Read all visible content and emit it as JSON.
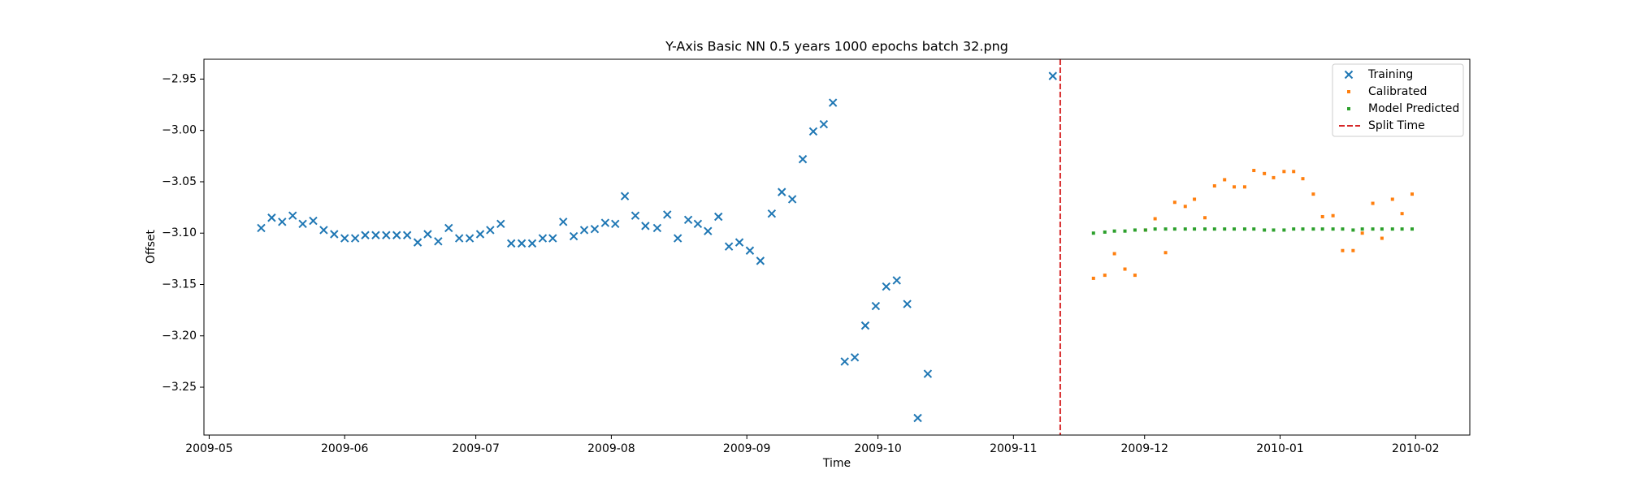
{
  "chart_data": {
    "type": "scatter",
    "title": "Y-Axis Basic NN 0.5 years 1000 epochs batch 32.png",
    "xlabel": "Time",
    "ylabel": "Offset",
    "xlim": [
      -1.2,
      288.4
    ],
    "ylim": [
      -3.2966,
      -2.9307
    ],
    "xticks": [
      {
        "value": 0,
        "label": "2009-05"
      },
      {
        "value": 31,
        "label": "2009-06"
      },
      {
        "value": 61,
        "label": "2009-07"
      },
      {
        "value": 92,
        "label": "2009-08"
      },
      {
        "value": 123,
        "label": "2009-09"
      },
      {
        "value": 153,
        "label": "2009-10"
      },
      {
        "value": 184,
        "label": "2009-11"
      },
      {
        "value": 214,
        "label": "2009-12"
      },
      {
        "value": 245,
        "label": "2010-01"
      },
      {
        "value": 276,
        "label": "2010-02"
      }
    ],
    "yticks": [
      {
        "value": -2.95,
        "label": "−2.95"
      },
      {
        "value": -3.0,
        "label": "−3.00"
      },
      {
        "value": -3.05,
        "label": "−3.05"
      },
      {
        "value": -3.1,
        "label": "−3.10"
      },
      {
        "value": -3.15,
        "label": "−3.15"
      },
      {
        "value": -3.2,
        "label": "−3.20"
      },
      {
        "value": -3.25,
        "label": "−3.25"
      }
    ],
    "legend": "upper right",
    "series": [
      {
        "name": "Training",
        "color": "#1f77b4",
        "marker": "x",
        "x": [
          11.9,
          14.3,
          16.7,
          19.1,
          21.4,
          23.8,
          26.2,
          28.6,
          31.0,
          33.4,
          35.7,
          38.1,
          40.5,
          42.9,
          45.3,
          47.7,
          50.0,
          52.4,
          54.8,
          57.2,
          59.6,
          62.0,
          64.3,
          66.7,
          69.1,
          71.5,
          73.9,
          76.3,
          78.6,
          81.0,
          83.4,
          85.8,
          88.2,
          90.6,
          92.9,
          95.1,
          97.5,
          99.8,
          102.5,
          104.8,
          107.2,
          109.6,
          111.8,
          114.1,
          116.5,
          118.9,
          121.3,
          123.7,
          126.1,
          128.7,
          131.0,
          133.4,
          135.8,
          138.2,
          140.6,
          142.7,
          145.4,
          147.7,
          150.1,
          152.5,
          154.9,
          157.3,
          159.7,
          162.1,
          164.4,
          193.0
        ],
        "values": [
          -3.095,
          -3.085,
          -3.089,
          -3.083,
          -3.091,
          -3.088,
          -3.097,
          -3.101,
          -3.105,
          -3.105,
          -3.102,
          -3.102,
          -3.102,
          -3.102,
          -3.102,
          -3.109,
          -3.101,
          -3.108,
          -3.095,
          -3.105,
          -3.105,
          -3.101,
          -3.097,
          -3.091,
          -3.11,
          -3.11,
          -3.11,
          -3.105,
          -3.105,
          -3.089,
          -3.103,
          -3.097,
          -3.096,
          -3.09,
          -3.091,
          -3.064,
          -3.083,
          -3.093,
          -3.095,
          -3.082,
          -3.105,
          -3.087,
          -3.091,
          -3.098,
          -3.084,
          -3.113,
          -3.109,
          -3.117,
          -3.127,
          -3.081,
          -3.06,
          -3.067,
          -3.028,
          -3.001,
          -2.994,
          -2.973,
          -3.225,
          -3.221,
          -3.19,
          -3.171,
          -3.152,
          -3.146,
          -3.169,
          -3.28,
          -3.237,
          -2.947
        ]
      },
      {
        "name": "Calibrated",
        "color": "#ff7f0e",
        "marker": "dot",
        "x": [
          202.3,
          204.9,
          207.1,
          209.5,
          211.8,
          214.2,
          216.4,
          218.8,
          220.9,
          223.3,
          225.4,
          227.8,
          230.0,
          232.3,
          234.5,
          236.9,
          239.0,
          241.4,
          243.5,
          245.9,
          248.1,
          250.2,
          252.6,
          254.7,
          257.1,
          259.3,
          261.7,
          263.8,
          266.2,
          268.3,
          270.7,
          272.9,
          275.2
        ],
        "values": [
          -3.144,
          -3.141,
          -3.12,
          -3.135,
          -3.141,
          -3.097,
          -3.086,
          -3.119,
          -3.07,
          -3.074,
          -3.067,
          -3.085,
          -3.054,
          -3.048,
          -3.055,
          -3.055,
          -3.039,
          -3.042,
          -3.046,
          -3.04,
          -3.04,
          -3.047,
          -3.062,
          -3.084,
          -3.083,
          -3.117,
          -3.117,
          -3.1,
          -3.071,
          -3.105,
          -3.067,
          -3.081,
          -3.062
        ]
      },
      {
        "name": "Model Predicted",
        "color": "#2ca02c",
        "marker": "dot",
        "x": [
          202.3,
          204.9,
          207.1,
          209.5,
          211.8,
          214.2,
          216.4,
          218.8,
          220.9,
          223.3,
          225.4,
          227.8,
          230.0,
          232.3,
          234.5,
          236.9,
          239.0,
          241.4,
          243.5,
          245.9,
          248.1,
          250.2,
          252.6,
          254.7,
          257.1,
          259.3,
          261.7,
          263.8,
          266.2,
          268.3,
          270.7,
          272.9,
          275.2
        ],
        "values": [
          -3.1,
          -3.099,
          -3.098,
          -3.098,
          -3.097,
          -3.097,
          -3.096,
          -3.096,
          -3.096,
          -3.096,
          -3.096,
          -3.096,
          -3.096,
          -3.096,
          -3.096,
          -3.096,
          -3.096,
          -3.097,
          -3.097,
          -3.097,
          -3.096,
          -3.096,
          -3.096,
          -3.096,
          -3.096,
          -3.096,
          -3.097,
          -3.096,
          -3.096,
          -3.096,
          -3.096,
          -3.096,
          -3.096
        ]
      }
    ],
    "split_line": {
      "name": "Split Time",
      "x": 194.7,
      "color": "#d62728"
    }
  }
}
